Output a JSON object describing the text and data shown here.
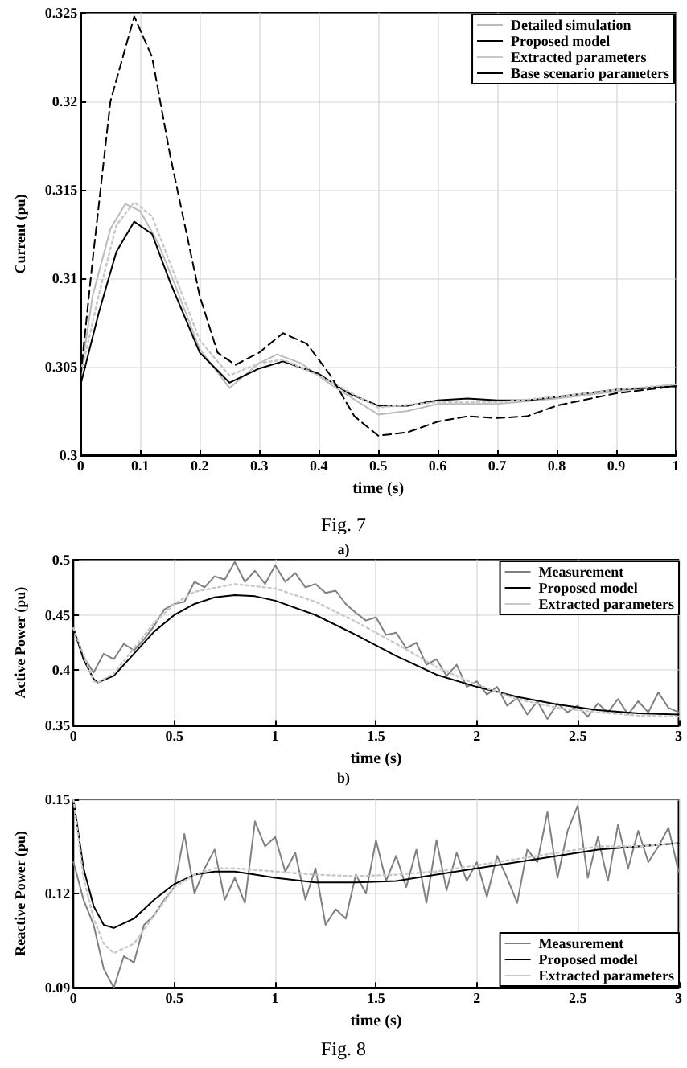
{
  "chart_data": [
    {
      "type": "line",
      "xlabel": "time (s)",
      "ylabel": "Current (pu)",
      "annotations": [
        "Fig. 7"
      ],
      "xlim": [
        0,
        1
      ],
      "xticks": [
        0,
        0.1,
        0.2,
        0.3,
        0.4,
        0.5,
        0.6,
        0.7,
        0.8,
        0.9,
        1
      ],
      "ylim": [
        0.3,
        0.325
      ],
      "yticks": [
        0.3,
        0.305,
        0.31,
        0.315,
        0.32,
        0.325
      ],
      "grid": true,
      "legend": "top right",
      "marker": "none",
      "series": [
        {
          "name": "Detailed simulation",
          "color": "#bbbbbb",
          "line_style": "solid",
          "x": [
            0,
            0.02,
            0.05,
            0.075,
            0.1,
            0.13,
            0.16,
            0.2,
            0.25,
            0.3,
            0.33,
            0.37,
            0.42,
            0.5,
            0.55,
            0.6,
            0.7,
            0.8,
            0.9,
            1
          ],
          "values": [
            0.3045,
            0.309,
            0.3128,
            0.3142,
            0.3138,
            0.312,
            0.3095,
            0.306,
            0.3038,
            0.3052,
            0.3057,
            0.3052,
            0.304,
            0.3023,
            0.3025,
            0.3029,
            0.3029,
            0.3032,
            0.3036,
            0.304
          ]
        },
        {
          "name": "Proposed model",
          "color": "#000000",
          "line_style": "solid",
          "x": [
            0,
            0.03,
            0.06,
            0.09,
            0.12,
            0.15,
            0.2,
            0.25,
            0.3,
            0.34,
            0.4,
            0.45,
            0.5,
            0.55,
            0.6,
            0.65,
            0.7,
            0.75,
            0.8,
            0.9,
            1
          ],
          "values": [
            0.304,
            0.308,
            0.3115,
            0.3132,
            0.3125,
            0.3098,
            0.3058,
            0.3041,
            0.3049,
            0.3053,
            0.3046,
            0.3035,
            0.3028,
            0.3028,
            0.3031,
            0.3032,
            0.3031,
            0.3031,
            0.3033,
            0.3037,
            0.3039
          ]
        },
        {
          "name": "Extracted parameters",
          "color": "#c8c8c8",
          "line_style": "dotted",
          "x": [
            0,
            0.03,
            0.06,
            0.09,
            0.12,
            0.16,
            0.2,
            0.25,
            0.3,
            0.34,
            0.4,
            0.5,
            0.6,
            0.7,
            0.8,
            0.9,
            1
          ],
          "values": [
            0.3045,
            0.309,
            0.313,
            0.3143,
            0.3135,
            0.31,
            0.3065,
            0.3045,
            0.3052,
            0.3054,
            0.3045,
            0.3027,
            0.303,
            0.303,
            0.3033,
            0.3037,
            0.304
          ]
        },
        {
          "name": "Base scenario parameters",
          "color": "#000000",
          "line_style": "dashed",
          "x": [
            0,
            0.02,
            0.05,
            0.09,
            0.12,
            0.15,
            0.2,
            0.23,
            0.26,
            0.3,
            0.34,
            0.38,
            0.42,
            0.46,
            0.5,
            0.55,
            0.6,
            0.65,
            0.7,
            0.75,
            0.8,
            0.9,
            1
          ],
          "values": [
            0.3045,
            0.311,
            0.32,
            0.3248,
            0.3225,
            0.317,
            0.309,
            0.3058,
            0.3051,
            0.3058,
            0.3069,
            0.3063,
            0.3045,
            0.3022,
            0.3011,
            0.3013,
            0.3019,
            0.3022,
            0.3021,
            0.3022,
            0.3028,
            0.3035,
            0.3039
          ]
        }
      ]
    },
    {
      "type": "line",
      "title": "a)",
      "xlabel": "time (s)",
      "ylabel": "Active Power (pu)",
      "xlim": [
        0,
        3
      ],
      "xticks": [
        0,
        0.5,
        1,
        1.5,
        2,
        2.5,
        3
      ],
      "ylim": [
        0.35,
        0.5
      ],
      "yticks": [
        0.35,
        0.4,
        0.45,
        0.5
      ],
      "grid": true,
      "legend": "top right",
      "marker": "none",
      "series": [
        {
          "name": "Measurement",
          "color": "#808080",
          "line_style": "solid",
          "x": [
            0,
            0.05,
            0.1,
            0.15,
            0.2,
            0.25,
            0.3,
            0.35,
            0.4,
            0.45,
            0.5,
            0.55,
            0.6,
            0.65,
            0.7,
            0.75,
            0.8,
            0.85,
            0.9,
            0.95,
            1,
            1.05,
            1.1,
            1.15,
            1.2,
            1.25,
            1.3,
            1.35,
            1.4,
            1.45,
            1.5,
            1.55,
            1.6,
            1.65,
            1.7,
            1.75,
            1.8,
            1.85,
            1.9,
            1.95,
            2,
            2.05,
            2.1,
            2.15,
            2.2,
            2.25,
            2.3,
            2.35,
            2.4,
            2.45,
            2.5,
            2.55,
            2.6,
            2.65,
            2.7,
            2.75,
            2.8,
            2.85,
            2.9,
            2.95,
            3
          ],
          "values": [
            0.438,
            0.412,
            0.398,
            0.415,
            0.41,
            0.424,
            0.418,
            0.428,
            0.44,
            0.455,
            0.46,
            0.462,
            0.48,
            0.475,
            0.485,
            0.482,
            0.498,
            0.48,
            0.49,
            0.478,
            0.495,
            0.48,
            0.488,
            0.475,
            0.478,
            0.47,
            0.472,
            0.46,
            0.452,
            0.445,
            0.448,
            0.432,
            0.434,
            0.42,
            0.425,
            0.405,
            0.41,
            0.395,
            0.405,
            0.385,
            0.39,
            0.378,
            0.385,
            0.368,
            0.375,
            0.36,
            0.372,
            0.356,
            0.37,
            0.362,
            0.368,
            0.358,
            0.37,
            0.362,
            0.374,
            0.36,
            0.372,
            0.362,
            0.38,
            0.366,
            0.362
          ]
        },
        {
          "name": "Proposed model",
          "color": "#000000",
          "line_style": "solid",
          "x": [
            0,
            0.05,
            0.1,
            0.12,
            0.2,
            0.3,
            0.4,
            0.5,
            0.6,
            0.7,
            0.8,
            0.9,
            1,
            1.2,
            1.4,
            1.6,
            1.8,
            2,
            2.2,
            2.4,
            2.6,
            2.8,
            3
          ],
          "values": [
            0.438,
            0.41,
            0.392,
            0.389,
            0.395,
            0.415,
            0.435,
            0.45,
            0.46,
            0.466,
            0.468,
            0.467,
            0.463,
            0.45,
            0.432,
            0.413,
            0.396,
            0.385,
            0.376,
            0.369,
            0.364,
            0.361,
            0.36
          ]
        },
        {
          "name": "Extracted parameters",
          "color": "#c8c8c8",
          "line_style": "dotted",
          "x": [
            0,
            0.1,
            0.12,
            0.2,
            0.3,
            0.4,
            0.5,
            0.6,
            0.8,
            1,
            1.2,
            1.4,
            1.6,
            1.8,
            2,
            2.2,
            2.4,
            2.6,
            2.8,
            3
          ],
          "values": [
            0.438,
            0.39,
            0.389,
            0.397,
            0.42,
            0.443,
            0.46,
            0.471,
            0.478,
            0.474,
            0.462,
            0.444,
            0.424,
            0.403,
            0.387,
            0.374,
            0.366,
            0.362,
            0.359,
            0.358
          ]
        }
      ]
    },
    {
      "type": "line",
      "title": "b)",
      "xlabel": "time (s)",
      "ylabel": "Reactive Power (pu)",
      "annotations": [
        "Fig. 8"
      ],
      "xlim": [
        0,
        3
      ],
      "xticks": [
        0,
        0.5,
        1,
        1.5,
        2,
        2.5,
        3
      ],
      "ylim": [
        0.09,
        0.15
      ],
      "yticks": [
        0.09,
        0.12,
        0.15
      ],
      "grid": true,
      "legend": "bottom right",
      "marker": "none",
      "series": [
        {
          "name": "Measurement",
          "color": "#808080",
          "line_style": "solid",
          "x": [
            0,
            0.05,
            0.1,
            0.15,
            0.2,
            0.25,
            0.3,
            0.35,
            0.4,
            0.45,
            0.5,
            0.55,
            0.6,
            0.65,
            0.7,
            0.75,
            0.8,
            0.85,
            0.9,
            0.95,
            1,
            1.05,
            1.1,
            1.15,
            1.2,
            1.25,
            1.3,
            1.35,
            1.4,
            1.45,
            1.5,
            1.55,
            1.6,
            1.65,
            1.7,
            1.75,
            1.8,
            1.85,
            1.9,
            1.95,
            2,
            2.05,
            2.1,
            2.15,
            2.2,
            2.25,
            2.3,
            2.35,
            2.4,
            2.45,
            2.5,
            2.55,
            2.6,
            2.65,
            2.7,
            2.75,
            2.8,
            2.85,
            2.9,
            2.95,
            3
          ],
          "values": [
            0.13,
            0.118,
            0.11,
            0.096,
            0.09,
            0.1,
            0.098,
            0.11,
            0.113,
            0.118,
            0.122,
            0.139,
            0.12,
            0.128,
            0.134,
            0.118,
            0.125,
            0.117,
            0.143,
            0.135,
            0.138,
            0.127,
            0.133,
            0.118,
            0.128,
            0.11,
            0.115,
            0.112,
            0.126,
            0.12,
            0.137,
            0.124,
            0.132,
            0.122,
            0.134,
            0.117,
            0.137,
            0.121,
            0.133,
            0.124,
            0.13,
            0.119,
            0.132,
            0.125,
            0.117,
            0.134,
            0.13,
            0.146,
            0.125,
            0.14,
            0.148,
            0.125,
            0.138,
            0.124,
            0.142,
            0.128,
            0.14,
            0.13,
            0.135,
            0.141,
            0.127
          ]
        },
        {
          "name": "Proposed model",
          "color": "#000000",
          "line_style": "solid",
          "x": [
            0,
            0.05,
            0.1,
            0.15,
            0.2,
            0.3,
            0.4,
            0.5,
            0.6,
            0.7,
            0.8,
            0.9,
            1,
            1.2,
            1.4,
            1.6,
            1.8,
            2,
            2.2,
            2.4,
            2.6,
            2.8,
            3
          ],
          "values": [
            0.15,
            0.128,
            0.116,
            0.11,
            0.109,
            0.112,
            0.118,
            0.123,
            0.126,
            0.127,
            0.127,
            0.126,
            0.125,
            0.1235,
            0.1235,
            0.124,
            0.126,
            0.128,
            0.13,
            0.132,
            0.134,
            0.135,
            0.136
          ]
        },
        {
          "name": "Extracted parameters",
          "color": "#c8c8c8",
          "line_style": "dotted",
          "x": [
            0,
            0.05,
            0.1,
            0.15,
            0.2,
            0.3,
            0.4,
            0.5,
            0.6,
            0.7,
            0.8,
            1,
            1.2,
            1.4,
            1.6,
            1.8,
            2,
            2.2,
            2.4,
            2.6,
            2.8,
            3
          ],
          "values": [
            0.15,
            0.125,
            0.112,
            0.104,
            0.101,
            0.104,
            0.113,
            0.122,
            0.126,
            0.128,
            0.128,
            0.127,
            0.126,
            0.1255,
            0.126,
            0.127,
            0.129,
            0.131,
            0.133,
            0.135,
            0.135,
            0.136
          ]
        }
      ]
    }
  ]
}
